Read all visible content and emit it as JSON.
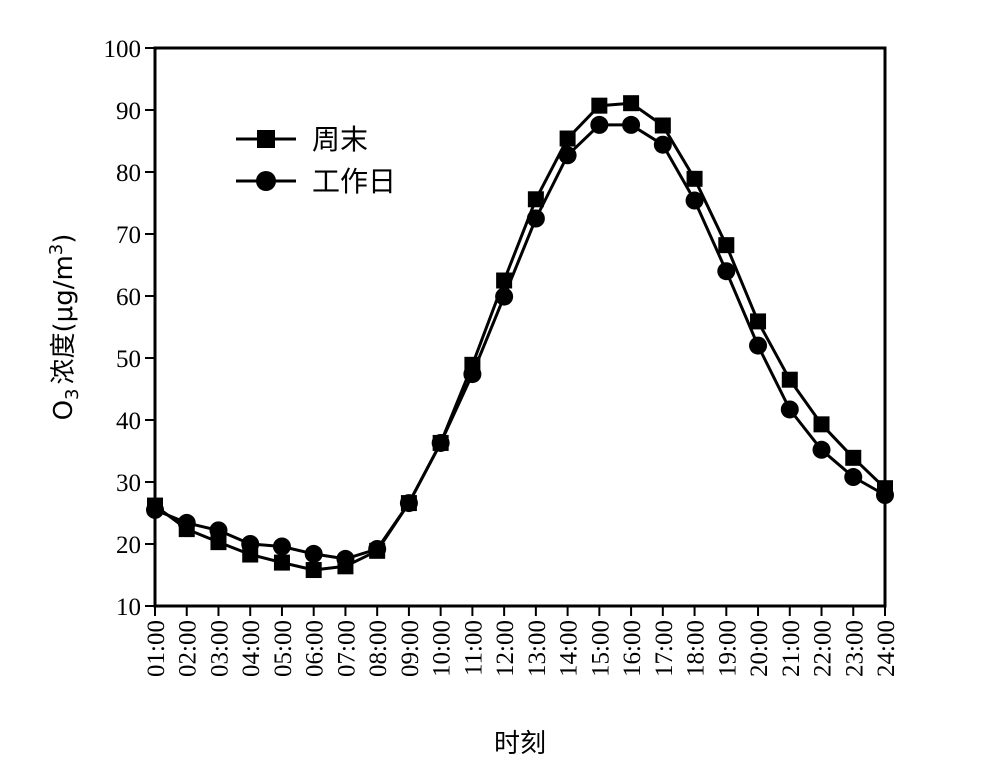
{
  "chart_data": {
    "type": "line",
    "xlabel": "时刻",
    "ylabel": {
      "prefix": "O",
      "sub": "3",
      "middle": "浓度(μg/m",
      "sup": "3",
      "suffix": ")"
    },
    "ylim": [
      10,
      100
    ],
    "yticks": [
      "10",
      "20",
      "30",
      "40",
      "50",
      "60",
      "70",
      "80",
      "90",
      "100"
    ],
    "categories": [
      "01:00",
      "02:00",
      "03:00",
      "04:00",
      "05:00",
      "06:00",
      "07:00",
      "08:00",
      "09:00",
      "10:00",
      "11:00",
      "12:00",
      "13:00",
      "14:00",
      "15:00",
      "16:00",
      "17:00",
      "18:00",
      "19:00",
      "20:00",
      "21:00",
      "22:00",
      "23:00",
      "24:00"
    ],
    "grid": false,
    "legend_position": "top-left",
    "series": [
      {
        "name": "周末",
        "marker": "square",
        "color": "#000000",
        "values": [
          26.2,
          22.4,
          20.3,
          18.3,
          17.0,
          15.8,
          16.4,
          18.9,
          26.6,
          36.3,
          48.9,
          62.5,
          75.6,
          85.4,
          90.7,
          91.1,
          87.5,
          78.9,
          68.2,
          55.9,
          46.5,
          39.3,
          33.9,
          29.0
        ]
      },
      {
        "name": "工作日",
        "marker": "circle",
        "color": "#000000",
        "values": [
          25.5,
          23.4,
          22.2,
          20.0,
          19.6,
          18.4,
          17.6,
          19.2,
          26.6,
          36.3,
          47.4,
          59.9,
          72.5,
          82.7,
          87.6,
          87.6,
          84.4,
          75.4,
          64.0,
          52.0,
          41.7,
          35.2,
          30.8,
          27.9
        ]
      }
    ]
  }
}
